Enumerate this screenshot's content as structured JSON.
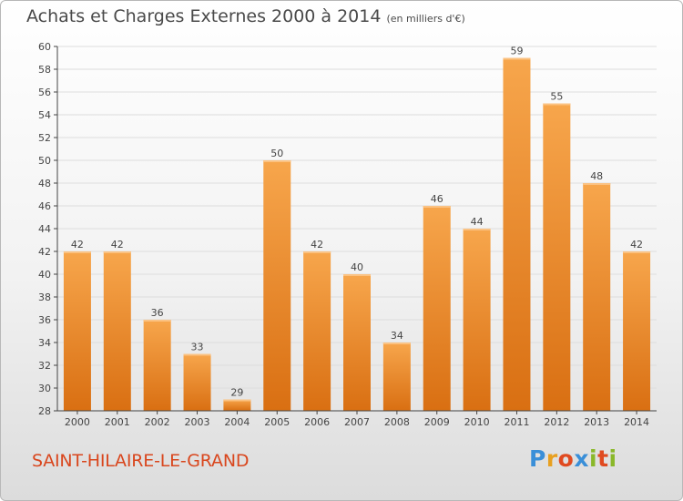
{
  "title": "Achats et Charges Externes 2000 à 2014",
  "subtitle": "(en milliers d'€)",
  "commune": "SAINT-HILAIRE-LE-GRAND",
  "logo": {
    "letters": [
      "P",
      "r",
      "o",
      "x",
      "i",
      "t",
      "i"
    ],
    "colors": [
      "#3a8fd8",
      "#e8a020",
      "#e04a20",
      "#3a8fd8",
      "#8ab82a",
      "#e04a20",
      "#8ab82a"
    ]
  },
  "colors": {
    "bar_top": "#f7a64c",
    "bar_bottom": "#d96f12",
    "label": "#444444",
    "axis": "#444444",
    "grid": "#dddddd",
    "commune": "#d9461d"
  },
  "chart_data": {
    "type": "bar",
    "categories": [
      "2000",
      "2001",
      "2002",
      "2003",
      "2004",
      "2005",
      "2006",
      "2007",
      "2008",
      "2009",
      "2010",
      "2011",
      "2012",
      "2013",
      "2014"
    ],
    "values": [
      42,
      42,
      36,
      33,
      29,
      50,
      42,
      40,
      34,
      46,
      44,
      59,
      55,
      48,
      42
    ],
    "ylim": [
      28,
      60
    ],
    "yticks": [
      28,
      30,
      32,
      34,
      36,
      38,
      40,
      42,
      44,
      46,
      48,
      50,
      52,
      54,
      56,
      58,
      60
    ],
    "grid": true,
    "legend": "none"
  }
}
